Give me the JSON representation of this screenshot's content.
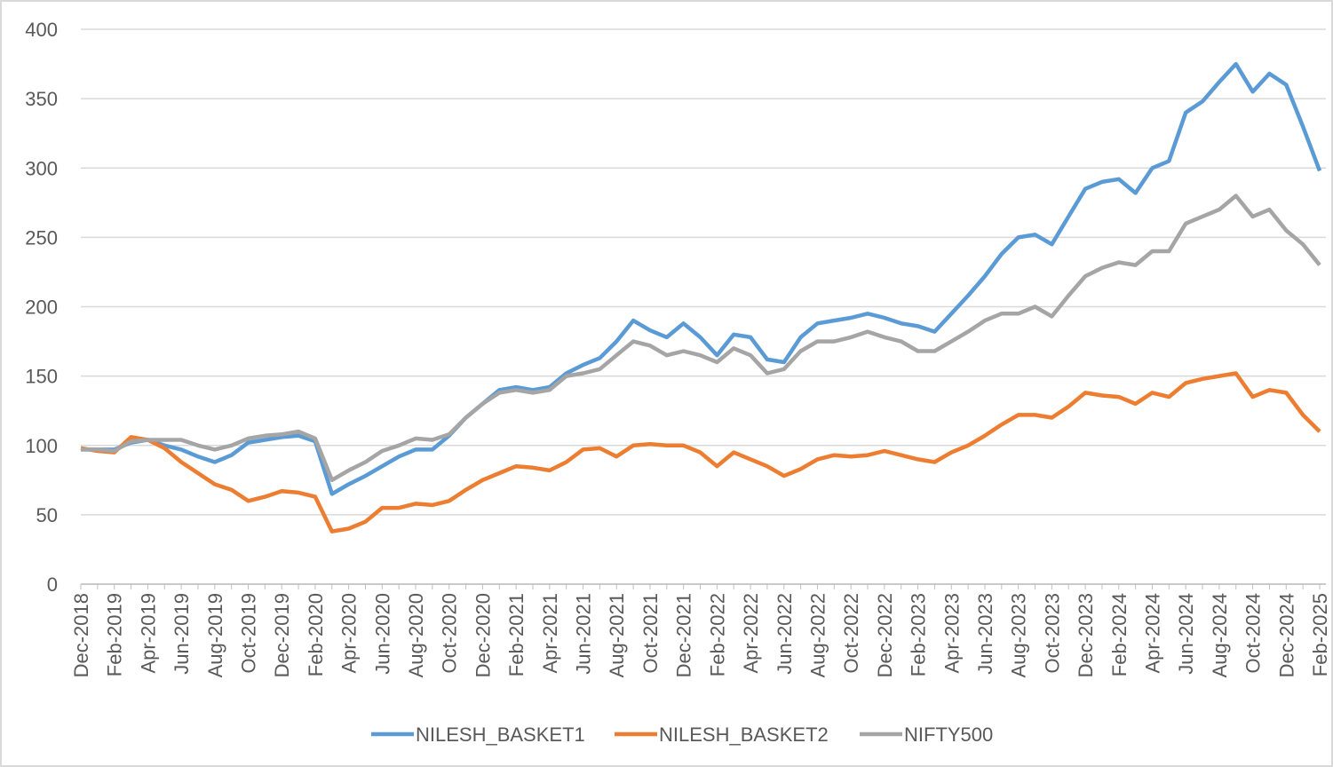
{
  "chart_data": {
    "type": "line",
    "categories": [
      "Dec-2018",
      null,
      "Feb-2019",
      null,
      "Apr-2019",
      null,
      "Jun-2019",
      null,
      "Aug-2019",
      null,
      "Oct-2019",
      null,
      "Dec-2019",
      null,
      "Feb-2020",
      null,
      "Apr-2020",
      null,
      "Jun-2020",
      null,
      "Aug-2020",
      null,
      "Oct-2020",
      null,
      "Dec-2020",
      null,
      "Feb-2021",
      null,
      "Apr-2021",
      null,
      "Jun-2021",
      null,
      "Aug-2021",
      null,
      "Oct-2021",
      null,
      "Dec-2021",
      null,
      "Feb-2022",
      null,
      "Apr-2022",
      null,
      "Jun-2022",
      null,
      "Aug-2022",
      null,
      "Oct-2022",
      null,
      "Dec-2022",
      null,
      "Feb-2023",
      null,
      "Apr-2023",
      null,
      "Jun-2023",
      null,
      "Aug-2023",
      null,
      "Oct-2023",
      null,
      "Dec-2023",
      null,
      "Feb-2024",
      null,
      "Apr-2024",
      null,
      "Jun-2024",
      null,
      "Aug-2024",
      null,
      "Oct-2024",
      null,
      "Dec-2024",
      null,
      "Feb-2025"
    ],
    "series": [
      {
        "name": "NILESH_BASKET1",
        "color": "#5b9bd5",
        "values": [
          97,
          97,
          97,
          102,
          104,
          100,
          97,
          92,
          88,
          93,
          102,
          104,
          106,
          107,
          103,
          65,
          72,
          78,
          85,
          92,
          97,
          97,
          107,
          120,
          130,
          140,
          142,
          140,
          142,
          152,
          158,
          163,
          175,
          190,
          183,
          178,
          188,
          178,
          165,
          180,
          178,
          162,
          160,
          178,
          188,
          190,
          192,
          195,
          192,
          188,
          186,
          182,
          195,
          208,
          222,
          238,
          250,
          252,
          245,
          265,
          285,
          290,
          292,
          282,
          300,
          305,
          340,
          348,
          362,
          375,
          355,
          368,
          360,
          330,
          298
        ]
      },
      {
        "name": "NILESH_BASKET2",
        "color": "#ed7d31",
        "values": [
          98,
          96,
          95,
          106,
          104,
          98,
          88,
          80,
          72,
          68,
          60,
          63,
          67,
          66,
          63,
          38,
          40,
          45,
          55,
          55,
          58,
          57,
          60,
          68,
          75,
          80,
          85,
          84,
          82,
          88,
          97,
          98,
          92,
          100,
          101,
          100,
          100,
          95,
          85,
          95,
          90,
          85,
          78,
          83,
          90,
          93,
          92,
          93,
          96,
          93,
          90,
          88,
          95,
          100,
          107,
          115,
          122,
          122,
          120,
          128,
          138,
          136,
          135,
          130,
          138,
          135,
          145,
          148,
          150,
          152,
          135,
          140,
          138,
          122,
          110
        ]
      },
      {
        "name": "NIFTY500",
        "color": "#a5a5a5",
        "values": [
          97,
          97,
          96,
          103,
          104,
          104,
          104,
          100,
          97,
          100,
          105,
          107,
          108,
          110,
          105,
          75,
          82,
          88,
          96,
          100,
          105,
          104,
          108,
          120,
          130,
          138,
          140,
          138,
          140,
          150,
          152,
          155,
          165,
          175,
          172,
          165,
          168,
          165,
          160,
          170,
          165,
          152,
          155,
          168,
          175,
          175,
          178,
          182,
          178,
          175,
          168,
          168,
          175,
          182,
          190,
          195,
          195,
          200,
          193,
          208,
          222,
          228,
          232,
          230,
          240,
          240,
          260,
          265,
          270,
          280,
          265,
          270,
          255,
          245,
          230
        ]
      }
    ],
    "ylim": [
      0,
      400
    ],
    "yticks": [
      0,
      50,
      100,
      150,
      200,
      250,
      300,
      350,
      400
    ],
    "grid": true,
    "legend": "bottom"
  }
}
